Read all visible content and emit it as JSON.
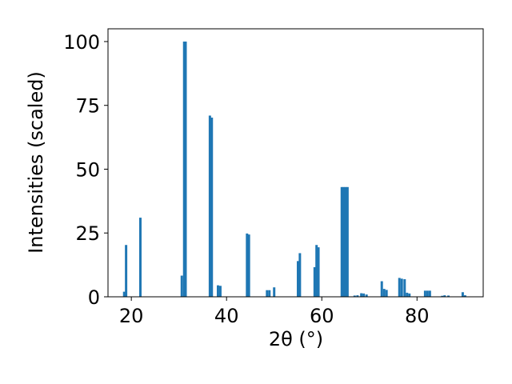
{
  "chart_data": {
    "type": "bar",
    "x": [
      18.5,
      18.9,
      21.9,
      30.6,
      31.1,
      31.4,
      36.5,
      36.9,
      38.2,
      38.7,
      44.3,
      44.7,
      48.5,
      49.0,
      50.0,
      55.0,
      55.4,
      58.5,
      58.9,
      59.3,
      64.2,
      64.6,
      65.0,
      65.4,
      66.9,
      67.5,
      68.3,
      68.8,
      69.4,
      72.6,
      73.1,
      73.6,
      76.3,
      76.8,
      77.4,
      77.9,
      78.4,
      81.7,
      82.2,
      82.7,
      85.3,
      85.8,
      86.6,
      89.6,
      90.1
    ],
    "values": [
      2,
      20.3,
      31,
      8.3,
      100,
      100,
      71,
      70.2,
      4.5,
      4.3,
      24.8,
      24.4,
      2.6,
      2.6,
      3.7,
      14,
      17.1,
      11.6,
      20.3,
      19.4,
      43,
      43,
      43,
      43,
      0.5,
      0.6,
      1.4,
      1.3,
      0.9,
      6.1,
      3.1,
      2.7,
      7.4,
      7.1,
      6.9,
      1.6,
      1.3,
      2.4,
      2.4,
      2.4,
      0.4,
      0.6,
      0.5,
      1.8,
      0.6
    ],
    "bar_width": 0.5,
    "color": "#1f77b4",
    "xlabel": "2θ (°)",
    "ylabel": "Intensities (scaled)",
    "xlim": [
      15.1,
      93.9
    ],
    "xticks": [
      20,
      40,
      60,
      80
    ],
    "ylim": [
      0,
      105
    ],
    "yticks": [
      0,
      25,
      50,
      75,
      100
    ]
  }
}
